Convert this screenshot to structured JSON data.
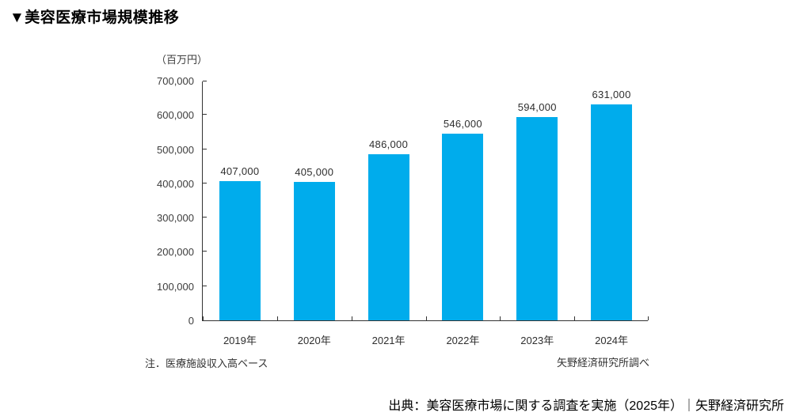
{
  "page": {
    "title": "▼美容医療市場規模推移",
    "note_left": "注．医療施設収入高ベース",
    "note_right": "矢野経済研究所調べ",
    "source": "出典：美容医療市場に関する調査を実施（2025年）｜矢野経済研究所"
  },
  "chart_data": {
    "type": "bar",
    "title": "美容医療市場規模推移",
    "unit_label": "（百万円）",
    "categories": [
      "2019年",
      "2020年",
      "2021年",
      "2022年",
      "2023年",
      "2024年"
    ],
    "values": [
      407000,
      405000,
      486000,
      546000,
      594000,
      631000
    ],
    "value_labels": [
      "407,000",
      "405,000",
      "486,000",
      "546,000",
      "594,000",
      "631,000"
    ],
    "ylabel": "百万円",
    "ylim": [
      0,
      700000
    ],
    "y_tick_step": 100000,
    "y_tick_labels": [
      "0",
      "100,000",
      "200,000",
      "300,000",
      "400,000",
      "500,000",
      "600,000",
      "700,000"
    ],
    "bar_color": "#00ACEC",
    "axis_color": "#333333",
    "grid": false,
    "legend": false
  }
}
